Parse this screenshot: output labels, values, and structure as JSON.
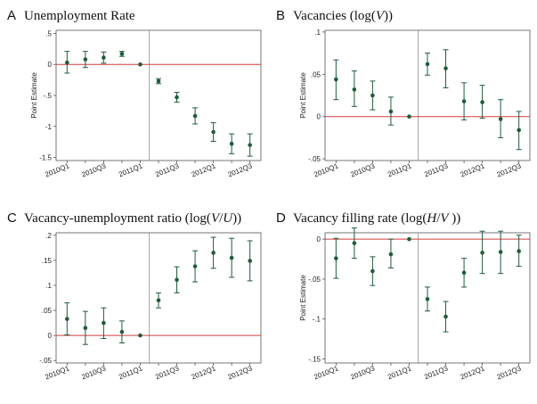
{
  "colors": {
    "point": "#1f5c3a",
    "zero_line": "#d23c3c",
    "axis": "#555555",
    "divider": "#888888"
  },
  "chart_data": [
    {
      "type": "scatter",
      "letter": "A",
      "title_parts": [
        {
          "text": "Unemployment Rate",
          "italic": false
        }
      ],
      "ylabel": "Point Estimate",
      "ylim": [
        -1.55,
        0.55
      ],
      "yticks": [
        0.5,
        0,
        -0.5,
        -1,
        -1.5
      ],
      "ytick_labels": [
        ".5",
        "0",
        "-.5",
        "-1",
        "-1.5"
      ],
      "x": [
        1,
        2,
        3,
        4,
        5,
        6,
        7,
        8,
        9,
        10,
        11
      ],
      "x_period_labels": [
        "2010Q1",
        "2010Q2",
        "2010Q3",
        "2010Q4",
        "2011Q1",
        "2011Q2",
        "2011Q3",
        "2011Q4",
        "2012Q1",
        "2012Q2",
        "2012Q3"
      ],
      "xtick_positions": [
        1,
        3,
        5,
        7,
        9,
        11
      ],
      "xtick_labels": [
        "2010Q1",
        "2010Q3",
        "2011Q1",
        "2011Q3",
        "2012Q1",
        "2012Q3"
      ],
      "xlim": [
        0.4,
        11.6
      ],
      "divider_at": 5.5,
      "values": [
        0.03,
        0.08,
        0.11,
        0.17,
        0.0,
        -0.27,
        -0.53,
        -0.83,
        -1.09,
        -1.28,
        -1.3
      ],
      "ci_low": [
        -0.14,
        -0.05,
        0.02,
        0.13,
        0.0,
        -0.31,
        -0.61,
        -0.96,
        -1.24,
        -1.44,
        -1.48
      ],
      "ci_high": [
        0.21,
        0.21,
        0.2,
        0.21,
        0.0,
        -0.23,
        -0.45,
        -0.7,
        -0.94,
        -1.12,
        -1.12
      ]
    },
    {
      "type": "scatter",
      "letter": "B",
      "title_parts": [
        {
          "text": "Vacancies (log(",
          "italic": false
        },
        {
          "text": "V",
          "italic": true
        },
        {
          "text": "))",
          "italic": false
        }
      ],
      "ylabel": "Point Estimate",
      "ylim": [
        -0.052,
        0.102
      ],
      "yticks": [
        0.1,
        0.05,
        0,
        -0.05
      ],
      "ytick_labels": [
        ".1",
        ".05",
        "0",
        "-.05"
      ],
      "x": [
        1,
        2,
        3,
        4,
        5,
        6,
        7,
        8,
        9,
        10,
        11
      ],
      "x_period_labels": [
        "2010Q1",
        "2010Q2",
        "2010Q3",
        "2010Q4",
        "2011Q1",
        "2011Q2",
        "2011Q3",
        "2011Q4",
        "2012Q1",
        "2012Q2",
        "2012Q3"
      ],
      "xtick_positions": [
        1,
        3,
        5,
        7,
        9,
        11
      ],
      "xtick_labels": [
        "2010Q1",
        "2010Q3",
        "2011Q1",
        "2011Q3",
        "2012Q1",
        "2012Q3"
      ],
      "xlim": [
        0.4,
        11.6
      ],
      "divider_at": 5.5,
      "values": [
        0.044,
        0.032,
        0.025,
        0.006,
        0.0,
        0.062,
        0.057,
        0.018,
        0.017,
        -0.003,
        -0.016
      ],
      "ci_low": [
        0.02,
        0.012,
        0.008,
        -0.01,
        0.0,
        0.049,
        0.034,
        -0.004,
        -0.002,
        -0.025,
        -0.039
      ],
      "ci_high": [
        0.067,
        0.054,
        0.042,
        0.023,
        0.0,
        0.075,
        0.079,
        0.04,
        0.037,
        0.02,
        0.006
      ]
    },
    {
      "type": "scatter",
      "letter": "C",
      "title_parts": [
        {
          "text": "Vacancy-unemployment ratio (log(",
          "italic": false
        },
        {
          "text": "V",
          "italic": true
        },
        {
          "text": "/",
          "italic": false
        },
        {
          "text": "U",
          "italic": true
        },
        {
          "text": "))",
          "italic": false
        }
      ],
      "ylabel": "",
      "ylim": [
        -0.055,
        0.205
      ],
      "yticks": [
        0.2,
        0.15,
        0.1,
        0.05,
        0,
        -0.05
      ],
      "ytick_labels": [
        ".2",
        ".15",
        ".1",
        ".05",
        "0",
        "-.05"
      ],
      "x": [
        1,
        2,
        3,
        4,
        5,
        6,
        7,
        8,
        9,
        10,
        11
      ],
      "x_period_labels": [
        "2010Q1",
        "2010Q2",
        "2010Q3",
        "2010Q4",
        "2011Q1",
        "2011Q2",
        "2011Q3",
        "2011Q4",
        "2012Q1",
        "2012Q2",
        "2012Q3"
      ],
      "xtick_positions": [
        1,
        3,
        5,
        7,
        9,
        11
      ],
      "xtick_labels": [
        "2010Q1",
        "2010Q3",
        "2011Q1",
        "2011Q3",
        "2012Q1",
        "2012Q3"
      ],
      "xlim": [
        0.4,
        11.6
      ],
      "divider_at": 5.5,
      "values": [
        0.033,
        0.015,
        0.025,
        0.007,
        0.0,
        0.07,
        0.111,
        0.138,
        0.165,
        0.155,
        0.149
      ],
      "ci_low": [
        0.001,
        -0.018,
        -0.006,
        -0.015,
        0.0,
        0.055,
        0.085,
        0.107,
        0.134,
        0.116,
        0.109
      ],
      "ci_high": [
        0.065,
        0.048,
        0.055,
        0.029,
        0.0,
        0.085,
        0.137,
        0.169,
        0.196,
        0.194,
        0.189
      ]
    },
    {
      "type": "scatter",
      "letter": "D",
      "title_parts": [
        {
          "text": "Vacancy filling rate (log(",
          "italic": false
        },
        {
          "text": "H",
          "italic": true
        },
        {
          "text": "/",
          "italic": false
        },
        {
          "text": "V",
          "italic": true
        },
        {
          "text": " ))",
          "italic": false
        }
      ],
      "ylabel": "Point Estimate",
      "ylim": [
        -0.155,
        0.008
      ],
      "yticks": [
        0,
        -0.05,
        -0.1,
        -0.15
      ],
      "ytick_labels": [
        "0",
        "-.05",
        "-.1",
        "-.15"
      ],
      "x": [
        1,
        2,
        3,
        4,
        5,
        6,
        7,
        8,
        9,
        10,
        11
      ],
      "x_period_labels": [
        "2010Q1",
        "2010Q2",
        "2010Q3",
        "2010Q4",
        "2011Q1",
        "2011Q2",
        "2011Q3",
        "2011Q4",
        "2012Q1",
        "2012Q2",
        "2012Q3"
      ],
      "xtick_positions": [
        1,
        3,
        5,
        7,
        9,
        11
      ],
      "xtick_labels": [
        "2010Q1",
        "2010Q3",
        "2011Q1",
        "2011Q3",
        "2012Q1",
        "2012Q3"
      ],
      "xlim": [
        0.4,
        11.6
      ],
      "divider_at": 5.5,
      "values": [
        -0.024,
        -0.005,
        -0.04,
        -0.019,
        0.0,
        -0.075,
        -0.097,
        -0.042,
        -0.017,
        -0.016,
        -0.015
      ],
      "ci_low": [
        -0.049,
        -0.024,
        -0.058,
        -0.036,
        0.0,
        -0.09,
        -0.116,
        -0.06,
        -0.043,
        -0.043,
        -0.034
      ],
      "ci_high": [
        0.001,
        0.014,
        -0.022,
        0.0,
        0.0,
        -0.06,
        -0.078,
        -0.024,
        0.01,
        0.01,
        0.005
      ]
    }
  ]
}
